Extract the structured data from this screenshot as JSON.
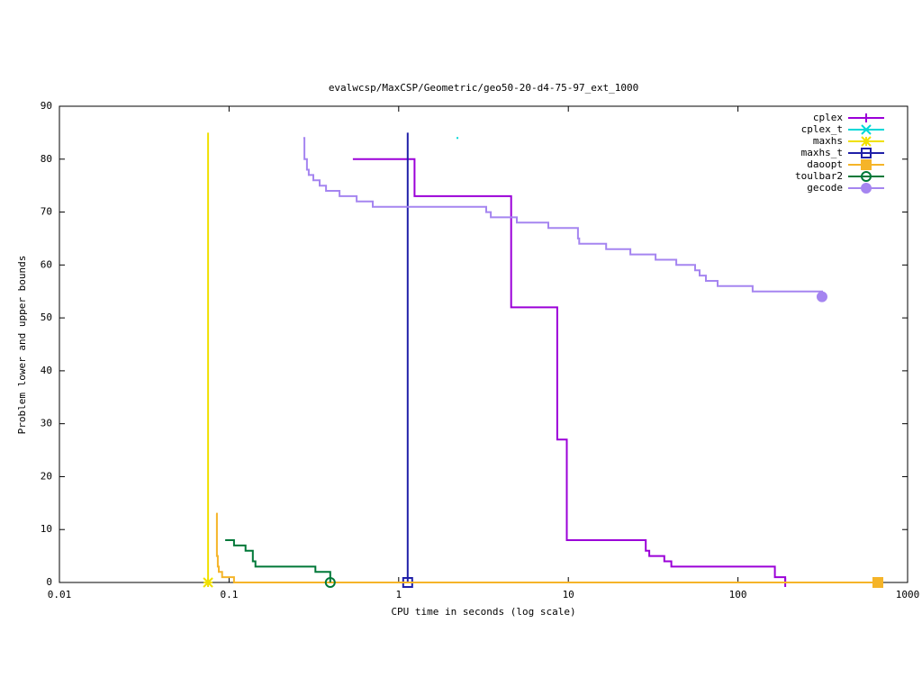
{
  "chart_data": {
    "type": "step",
    "title": "evalwcsp/MaxCSP/Geometric/geo50-20-d4-75-97_ext_1000",
    "x_label": "CPU time in seconds (log scale)",
    "y_label": "Problem lower and upper bounds",
    "xscale": "log",
    "xlim": [
      0.01,
      1000
    ],
    "xticks": [
      0.01,
      0.1,
      1,
      10,
      100,
      1000
    ],
    "ylim": [
      0,
      90
    ],
    "yticks": [
      0,
      10,
      20,
      30,
      40,
      50,
      60,
      70,
      80,
      90
    ],
    "legend": "top-right",
    "series": [
      {
        "name": "cplex",
        "color": "#9b00d8",
        "marker": "plus",
        "x": [
          0.537,
          1.24,
          4.6,
          8.6,
          9.8,
          28.6,
          30,
          36.8,
          40.5,
          165,
          190
        ],
        "values": [
          80,
          73,
          52,
          27,
          8,
          6,
          5,
          4,
          3,
          1,
          0
        ]
      },
      {
        "name": "cplex_t",
        "color": "#00d8d8",
        "marker": "cross",
        "x": [
          2.22
        ],
        "values": [
          84
        ]
      },
      {
        "name": "maxhs",
        "color": "#f0e000",
        "marker": "star",
        "x": [
          0.0752,
          0.0752
        ],
        "values": [
          85,
          0
        ]
      },
      {
        "name": "maxhs_t",
        "color": "#2020a8",
        "marker": "square-open",
        "x": [
          1.13,
          1.13
        ],
        "values": [
          85,
          0
        ]
      },
      {
        "name": "daoopt",
        "color": "#f5b428",
        "marker": "square",
        "x": [
          0.0839,
          0.0848,
          0.0858,
          0.087,
          0.091,
          0.107,
          668
        ],
        "values": [
          13,
          5,
          3,
          2,
          1,
          0,
          0
        ]
      },
      {
        "name": "toulbar2",
        "color": "#007838",
        "marker": "circle-open",
        "x": [
          0.0949,
          0.107,
          0.125,
          0.138,
          0.143,
          0.323,
          0.395
        ],
        "values": [
          8,
          7,
          6,
          4,
          3,
          2,
          0
        ]
      },
      {
        "name": "gecode",
        "color": "#a585f0",
        "marker": "circle",
        "x": [
          0.274,
          0.278,
          0.288,
          0.295,
          0.314,
          0.342,
          0.373,
          0.448,
          0.565,
          0.703,
          3.28,
          3.49,
          4.97,
          7.62,
          11.4,
          11.6,
          16.7,
          23.2,
          32.7,
          43.3,
          55.9,
          59.4,
          64.7,
          75.9,
          122,
          313
        ],
        "values": [
          84,
          80,
          78,
          77,
          76,
          75,
          74,
          73,
          72,
          71,
          70,
          69,
          68,
          67,
          65,
          64,
          63,
          62,
          61,
          60,
          59,
          58,
          57,
          56,
          55,
          54
        ]
      }
    ]
  }
}
